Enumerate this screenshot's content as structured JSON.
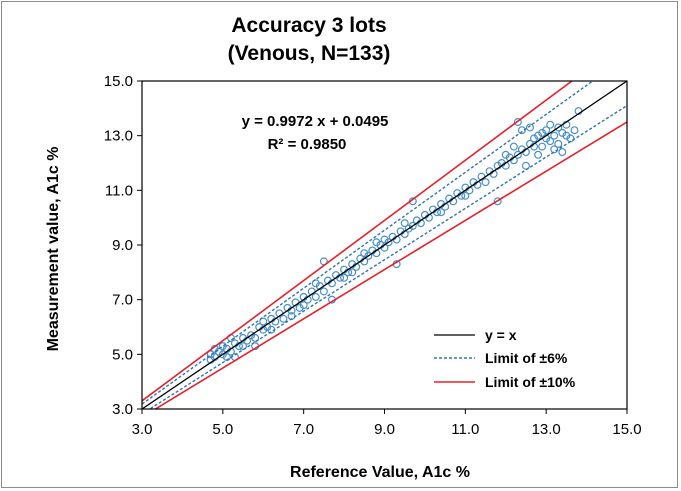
{
  "chart_data": {
    "type": "scatter",
    "title": [
      "Accuracy 3 lots",
      "(Venous, N=133)"
    ],
    "xlabel": "Reference Value, A1c %",
    "ylabel": "Measurement value, A1c %",
    "xlim": [
      3.0,
      15.0
    ],
    "ylim": [
      3.0,
      15.0
    ],
    "x_ticks": [
      "3.0",
      "5.0",
      "7.0",
      "9.0",
      "11.0",
      "13.0",
      "15.0"
    ],
    "y_ticks": [
      "3.0",
      "5.0",
      "7.0",
      "9.0",
      "11.0",
      "13.0",
      "15.0"
    ],
    "grid": false,
    "legend_position": "bottom-right",
    "annotations": [
      "y = 0.9972 x + 0.0495",
      "R² = 0.9850"
    ],
    "fit": {
      "slope": 0.9972,
      "intercept": 0.0495,
      "r2": 0.985
    },
    "series": [
      {
        "name": "y = x",
        "kind": "line",
        "slope": 1.0,
        "color": "#000000",
        "dash": "solid"
      },
      {
        "name": "Limit of ±6%",
        "kind": "band",
        "factors": [
          1.06,
          0.94
        ],
        "color": "#2e75b6",
        "dash": "dashed"
      },
      {
        "name": "Limit of ±10%",
        "kind": "band",
        "factors": [
          1.1,
          0.9
        ],
        "color": "#e8202a",
        "dash": "solid"
      },
      {
        "name": "",
        "kind": "points",
        "color": "#4a90c8",
        "points": [
          [
            4.7,
            4.8
          ],
          [
            4.7,
            5.0
          ],
          [
            4.8,
            4.9
          ],
          [
            4.8,
            5.2
          ],
          [
            4.9,
            5.1
          ],
          [
            5.0,
            5.0
          ],
          [
            5.0,
            5.3
          ],
          [
            5.1,
            5.2
          ],
          [
            5.1,
            4.9
          ],
          [
            5.2,
            5.1
          ],
          [
            5.2,
            5.6
          ],
          [
            5.3,
            5.4
          ],
          [
            5.4,
            5.3
          ],
          [
            5.5,
            5.6
          ],
          [
            5.6,
            5.5
          ],
          [
            5.7,
            5.7
          ],
          [
            5.8,
            5.6
          ],
          [
            5.8,
            5.3
          ],
          [
            5.9,
            6.0
          ],
          [
            6.0,
            5.9
          ],
          [
            6.0,
            6.2
          ],
          [
            6.1,
            6.0
          ],
          [
            6.2,
            6.3
          ],
          [
            6.3,
            6.2
          ],
          [
            6.4,
            6.5
          ],
          [
            6.5,
            6.3
          ],
          [
            6.6,
            6.7
          ],
          [
            6.7,
            6.6
          ],
          [
            6.8,
            6.9
          ],
          [
            6.9,
            6.7
          ],
          [
            7.0,
            7.1
          ],
          [
            7.0,
            6.8
          ],
          [
            7.1,
            7.0
          ],
          [
            7.2,
            7.3
          ],
          [
            7.3,
            7.1
          ],
          [
            7.4,
            7.5
          ],
          [
            7.5,
            7.3
          ],
          [
            7.5,
            8.4
          ],
          [
            7.6,
            7.7
          ],
          [
            7.7,
            7.6
          ],
          [
            7.7,
            7.0
          ],
          [
            7.8,
            7.9
          ],
          [
            7.9,
            7.8
          ],
          [
            8.0,
            8.1
          ],
          [
            8.0,
            7.8
          ],
          [
            8.1,
            8.0
          ],
          [
            8.2,
            8.3
          ],
          [
            8.3,
            8.2
          ],
          [
            8.4,
            8.5
          ],
          [
            8.5,
            8.4
          ],
          [
            8.5,
            8.7
          ],
          [
            8.6,
            8.6
          ],
          [
            8.7,
            8.8
          ],
          [
            8.8,
            8.7
          ],
          [
            8.9,
            9.0
          ],
          [
            9.0,
            8.9
          ],
          [
            9.0,
            9.2
          ],
          [
            9.1,
            9.1
          ],
          [
            9.2,
            9.3
          ],
          [
            9.3,
            8.3
          ],
          [
            9.3,
            9.2
          ],
          [
            9.4,
            9.5
          ],
          [
            9.5,
            9.4
          ],
          [
            9.5,
            9.8
          ],
          [
            9.6,
            9.6
          ],
          [
            9.7,
            10.6
          ],
          [
            9.7,
            9.7
          ],
          [
            9.8,
            9.9
          ],
          [
            9.9,
            9.8
          ],
          [
            10.0,
            10.1
          ],
          [
            10.1,
            10.0
          ],
          [
            10.2,
            10.3
          ],
          [
            10.3,
            10.2
          ],
          [
            10.4,
            10.5
          ],
          [
            10.5,
            10.4
          ],
          [
            10.6,
            10.7
          ],
          [
            10.7,
            10.6
          ],
          [
            10.8,
            10.9
          ],
          [
            10.9,
            10.8
          ],
          [
            11.0,
            11.1
          ],
          [
            11.0,
            10.8
          ],
          [
            11.1,
            11.0
          ],
          [
            11.2,
            11.3
          ],
          [
            11.3,
            11.2
          ],
          [
            11.4,
            11.5
          ],
          [
            11.5,
            11.3
          ],
          [
            11.6,
            11.7
          ],
          [
            11.7,
            11.6
          ],
          [
            11.8,
            10.6
          ],
          [
            11.8,
            11.9
          ],
          [
            11.9,
            12.0
          ],
          [
            12.0,
            11.9
          ],
          [
            12.0,
            12.3
          ],
          [
            12.1,
            12.2
          ],
          [
            12.2,
            12.1
          ],
          [
            12.2,
            12.6
          ],
          [
            12.3,
            13.5
          ],
          [
            12.3,
            12.3
          ],
          [
            12.4,
            12.5
          ],
          [
            12.4,
            13.2
          ],
          [
            12.5,
            12.4
          ],
          [
            12.5,
            11.9
          ],
          [
            12.6,
            12.7
          ],
          [
            12.6,
            13.3
          ],
          [
            12.7,
            12.6
          ],
          [
            12.7,
            12.9
          ],
          [
            12.8,
            12.3
          ],
          [
            12.8,
            13.0
          ],
          [
            12.9,
            13.1
          ],
          [
            12.9,
            12.6
          ],
          [
            13.0,
            12.9
          ],
          [
            13.0,
            13.2
          ],
          [
            13.1,
            12.8
          ],
          [
            13.1,
            13.4
          ],
          [
            13.2,
            13.0
          ],
          [
            13.2,
            12.5
          ],
          [
            13.3,
            13.3
          ],
          [
            13.3,
            12.7
          ],
          [
            13.4,
            13.1
          ],
          [
            13.4,
            12.4
          ],
          [
            13.5,
            13.0
          ],
          [
            13.5,
            13.4
          ],
          [
            13.6,
            12.9
          ],
          [
            13.7,
            13.2
          ],
          [
            13.8,
            13.9
          ],
          [
            5.3,
            4.9
          ],
          [
            5.5,
            5.3
          ],
          [
            6.2,
            5.9
          ],
          [
            6.7,
            6.4
          ],
          [
            7.3,
            7.6
          ],
          [
            8.2,
            8.0
          ],
          [
            8.8,
            9.1
          ],
          [
            10.4,
            10.2
          ]
        ]
      }
    ]
  }
}
